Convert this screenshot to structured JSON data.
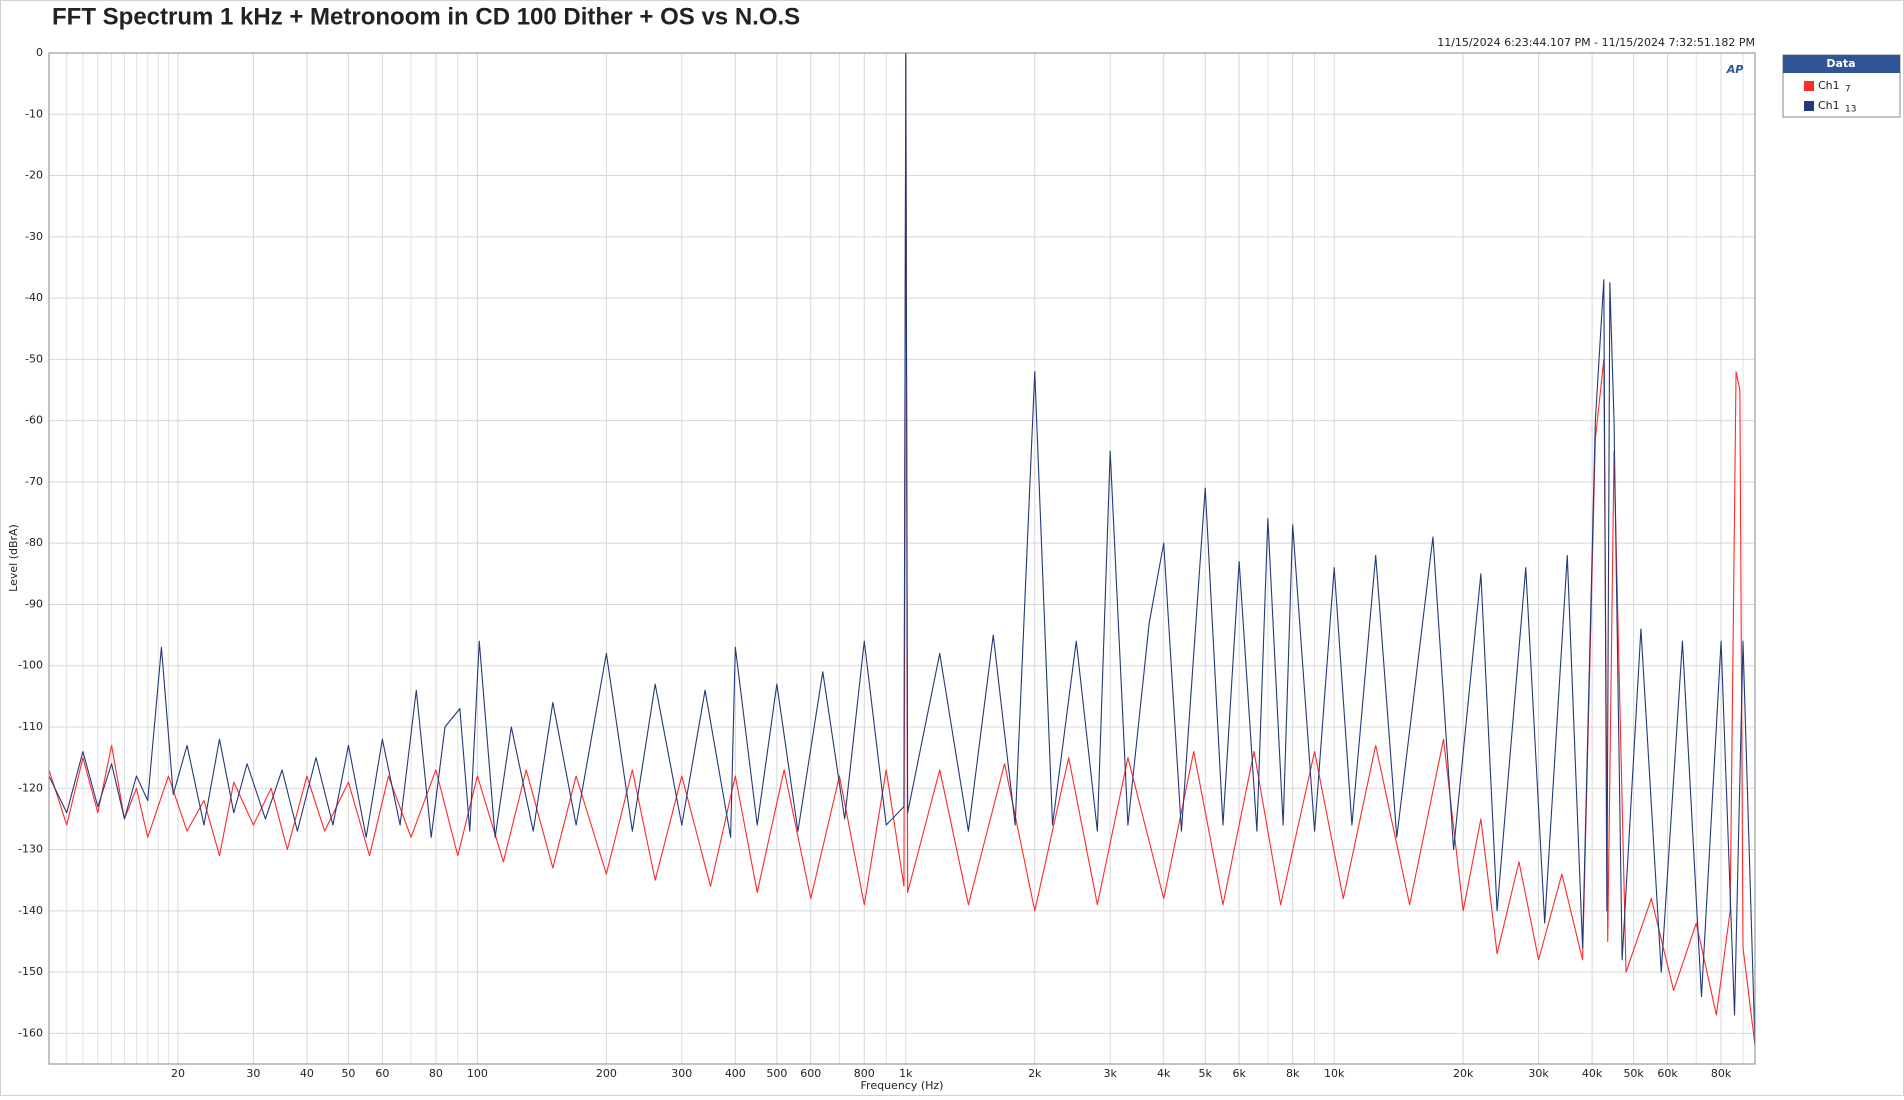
{
  "chart_data": {
    "type": "line",
    "title": "FFT Spectrum 1 kHz + Metronoom in CD 100  Dither + OS vs  N.O.S",
    "timestamp": "11/15/2024 6:23:44.107 PM - 11/15/2024 7:32:51.182 PM",
    "logo": "AP",
    "x_label": "Frequency (Hz)",
    "y_label": "Level (dBrA)",
    "legend_title": "Data",
    "legend": "top-right-outside",
    "xscale": "log",
    "grid": true,
    "xlim": [
      10,
      96000
    ],
    "ylim": [
      -165,
      0
    ],
    "yticks": [
      0,
      -10,
      -20,
      -30,
      -40,
      -50,
      -60,
      -70,
      -80,
      -90,
      -100,
      -110,
      -120,
      -130,
      -140,
      -150,
      -160
    ],
    "xticks": [
      20,
      30,
      40,
      50,
      60,
      80,
      100,
      200,
      300,
      400,
      500,
      600,
      800,
      {
        "value": 1000,
        "label": "1k"
      },
      {
        "value": 2000,
        "label": "2k"
      },
      {
        "value": 3000,
        "label": "3k"
      },
      {
        "value": 4000,
        "label": "4k"
      },
      {
        "value": 5000,
        "label": "5k"
      },
      {
        "value": 6000,
        "label": "6k"
      },
      {
        "value": 8000,
        "label": "8k"
      },
      {
        "value": 10000,
        "label": "10k"
      },
      {
        "value": 20000,
        "label": "20k"
      },
      {
        "value": 30000,
        "label": "30k"
      },
      {
        "value": 40000,
        "label": "40k"
      },
      {
        "value": 50000,
        "label": "50k"
      },
      {
        "value": 60000,
        "label": "60k"
      },
      {
        "value": 80000,
        "label": "80k"
      }
    ],
    "xgrid_minor": [
      11,
      12,
      13,
      14,
      15,
      16,
      17,
      18,
      19,
      70,
      90,
      700,
      900,
      7000,
      9000,
      70000,
      90000
    ],
    "series": [
      {
        "name": "Ch1",
        "subscript": "7",
        "color": "#ff2a2a",
        "x": [
          10,
          11,
          12,
          13,
          14,
          15,
          16,
          17,
          19,
          21,
          23,
          25,
          27,
          30,
          33,
          36,
          40,
          44,
          50,
          56,
          62,
          70,
          80,
          90,
          100,
          115,
          130,
          150,
          170,
          200,
          230,
          260,
          300,
          350,
          400,
          450,
          520,
          600,
          700,
          800,
          900,
          990,
          1000,
          1010,
          1200,
          1400,
          1700,
          2000,
          2400,
          2800,
          3300,
          4000,
          4700,
          5500,
          6500,
          7500,
          9000,
          10500,
          12500,
          15000,
          18000,
          20000,
          22000,
          24000,
          27000,
          30000,
          34000,
          38000,
          40700,
          42600,
          43500,
          45000,
          48000,
          55000,
          62000,
          70000,
          78000,
          84000,
          86700,
          88500,
          90000,
          96000
        ],
        "values": [
          -117,
          -126,
          -115,
          -124,
          -113,
          -125,
          -120,
          -128,
          -118,
          -127,
          -122,
          -131,
          -119,
          -126,
          -120,
          -130,
          -118,
          -127,
          -119,
          -131,
          -118,
          -128,
          -117,
          -131,
          -118,
          -132,
          -117,
          -133,
          -118,
          -134,
          -117,
          -135,
          -118,
          -136,
          -118,
          -137,
          -117,
          -138,
          -118,
          -139,
          -117,
          -136,
          0,
          -137,
          -117,
          -139,
          -116,
          -140,
          -115,
          -139,
          -115,
          -138,
          -114,
          -139,
          -114,
          -139,
          -114,
          -138,
          -113,
          -139,
          -112,
          -140,
          -125,
          -147,
          -132,
          -148,
          -134,
          -148,
          -63,
          -50,
          -145,
          -65,
          -150,
          -138,
          -153,
          -142,
          -157,
          -140,
          -52,
          -55,
          -146,
          -162
        ]
      },
      {
        "name": "Ch1",
        "subscript": "13",
        "color": "#24397a",
        "x": [
          10,
          11,
          12,
          13,
          14,
          15,
          16,
          17,
          18.3,
          19.5,
          21,
          23,
          25,
          27,
          29,
          32,
          35,
          38,
          42,
          46,
          50,
          55,
          60,
          66,
          72,
          78,
          84,
          91,
          96,
          101,
          110,
          120,
          135,
          150,
          170,
          200,
          230,
          260,
          300,
          340,
          390,
          400,
          450,
          500,
          560,
          640,
          720,
          800,
          900,
          990,
          1000,
          1010,
          1200,
          1400,
          1600,
          1800,
          2000,
          2200,
          2500,
          2800,
          3000,
          3300,
          3700,
          4000,
          4400,
          5000,
          5500,
          6000,
          6600,
          7000,
          7600,
          8000,
          9000,
          10000,
          11000,
          12500,
          14000,
          17000,
          19000,
          22000,
          24000,
          28000,
          31000,
          35000,
          38000,
          40700,
          42600,
          43300,
          44000,
          45000,
          47000,
          52000,
          58000,
          65000,
          72000,
          80000,
          86000,
          90000,
          96000
        ],
        "values": [
          -118,
          -124,
          -114,
          -123,
          -116,
          -125,
          -118,
          -122,
          -97,
          -121,
          -113,
          -126,
          -112,
          -124,
          -116,
          -125,
          -117,
          -127,
          -115,
          -126,
          -113,
          -128,
          -112,
          -126,
          -104,
          -128,
          -110,
          -107,
          -127,
          -96,
          -128,
          -110,
          -127,
          -106,
          -126,
          -98,
          -127,
          -103,
          -126,
          -104,
          -128,
          -97,
          -126,
          -103,
          -127,
          -101,
          -125,
          -96,
          -126,
          -123,
          0,
          -124,
          -98,
          -127,
          -95,
          -126,
          -52,
          -126,
          -96,
          -127,
          -65,
          -126,
          -93,
          -80,
          -127,
          -71,
          -126,
          -83,
          -127,
          -76,
          -126,
          -77,
          -127,
          -84,
          -126,
          -82,
          -128,
          -79,
          -130,
          -85,
          -140,
          -84,
          -142,
          -82,
          -146,
          -60,
          -37,
          -140,
          -37.5,
          -60,
          -148,
          -94,
          -150,
          -96,
          -154,
          -96,
          -157,
          -96,
          -162
        ]
      }
    ]
  }
}
